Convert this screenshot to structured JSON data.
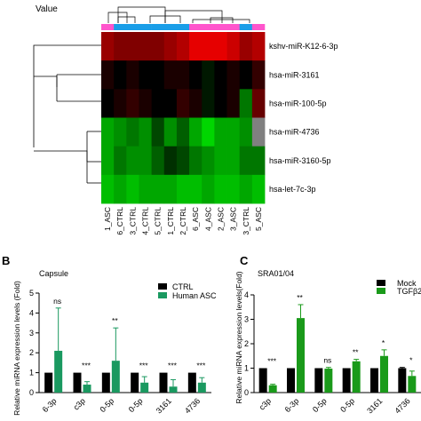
{
  "colors": {
    "heat_high": "#ff0000",
    "heat_mid": "#000000",
    "heat_low": "#00ee00",
    "heat_missing": "#808080",
    "group_asc": "#ff55cc",
    "group_ctrl": "#1a9ee8",
    "bar_ctrl": "#000000",
    "bar_asc": "#1a9960",
    "bar_mock": "#000000",
    "bar_tgf": "#1a9a1a"
  },
  "chart_data": [
    {
      "type": "heatmap",
      "panel_label": "",
      "legend_fragment": "Value",
      "columns": [
        "1_ASC",
        "6_CTRL",
        "3_CTRL",
        "4_CTRL",
        "5_CTRL",
        "1_CTRL",
        "2_CTRL",
        "6_ASC",
        "4_ASC",
        "2_ASC",
        "3_ASC",
        "3_CTRL",
        "5_ASC"
      ],
      "column_groups": [
        "ASC",
        "CTRL",
        "CTRL",
        "CTRL",
        "CTRL",
        "CTRL",
        "CTRL",
        "ASC",
        "ASC",
        "ASC",
        "ASC",
        "CTRL",
        "ASC"
      ],
      "rows": [
        "kshv-miR-K12-6-3p",
        "hsa-miR-3161",
        "hsa-miR-100-5p",
        "hsa-miR-4736",
        "hsa-miR-3160-5p",
        "hsa-let-7c-3p"
      ],
      "values": [
        [
          0.6,
          0.5,
          0.5,
          0.5,
          0.5,
          0.6,
          0.7,
          0.9,
          0.9,
          0.9,
          0.8,
          0.6,
          0.7
        ],
        [
          0.1,
          0.0,
          0.1,
          0.0,
          0.0,
          0.1,
          0.1,
          0.0,
          -0.1,
          0.0,
          0.1,
          0.0,
          0.2
        ],
        [
          0.0,
          0.1,
          0.2,
          0.1,
          0.0,
          0.0,
          0.2,
          0.1,
          -0.1,
          0.0,
          0.1,
          -0.5,
          0.4
        ],
        [
          -0.7,
          -0.6,
          -0.5,
          -0.6,
          -0.3,
          -0.6,
          -0.4,
          -0.7,
          -0.9,
          -0.7,
          -0.7,
          -0.6,
          null
        ],
        [
          -0.7,
          -0.5,
          -0.6,
          -0.6,
          -0.4,
          -0.2,
          -0.3,
          -0.5,
          -0.6,
          -0.7,
          -0.7,
          -0.5,
          -0.5
        ],
        [
          -0.8,
          -0.7,
          -0.8,
          -0.7,
          -0.7,
          -0.7,
          -0.8,
          -0.8,
          -0.7,
          -0.8,
          -0.8,
          -0.7,
          -0.8
        ]
      ]
    },
    {
      "type": "bar",
      "panel_label": "B",
      "title": "Capsule",
      "ylabel": "Relative miRNA expression levels (Fold)",
      "ylim": [
        0,
        5
      ],
      "yticks": [
        "0",
        "1",
        "2",
        "3",
        "4",
        "5"
      ],
      "categories": [
        "6-3p",
        "c3p",
        "0-5p",
        "0-5p",
        "3161",
        "4736"
      ],
      "series": [
        {
          "name": "CTRL",
          "values": [
            1,
            1,
            1,
            1,
            1,
            1
          ],
          "errors": [
            0,
            0,
            0,
            0,
            0,
            0
          ]
        },
        {
          "name": "Human ASC",
          "values": [
            2.1,
            0.4,
            1.6,
            0.5,
            0.3,
            0.5
          ],
          "errors": [
            2.15,
            0.15,
            1.65,
            0.3,
            0.35,
            0.25
          ]
        }
      ],
      "significance": [
        "ns",
        "***",
        "**",
        "***",
        "***",
        "***"
      ]
    },
    {
      "type": "bar",
      "panel_label": "C",
      "title": "SRA01/04",
      "ylabel": "Relative miRNA expression levels(Fold)",
      "ylim": [
        0,
        4
      ],
      "yticks": [
        "0",
        "1",
        "2",
        "3",
        "4"
      ],
      "categories": [
        "c3p",
        "6-3p",
        "0-5p",
        "0-5p",
        "3161",
        "4736"
      ],
      "series": [
        {
          "name": "Mock",
          "values": [
            1,
            1,
            1,
            1,
            1,
            1
          ],
          "errors": [
            0,
            0,
            0,
            0,
            0,
            0.03
          ]
        },
        {
          "name": "TGFβ2",
          "values": [
            0.3,
            3.05,
            0.98,
            1.28,
            1.5,
            0.68
          ],
          "errors": [
            0.04,
            0.55,
            0.05,
            0.08,
            0.25,
            0.2
          ]
        }
      ],
      "significance": [
        "***",
        "**",
        "ns",
        "**",
        "*",
        "*"
      ]
    }
  ]
}
